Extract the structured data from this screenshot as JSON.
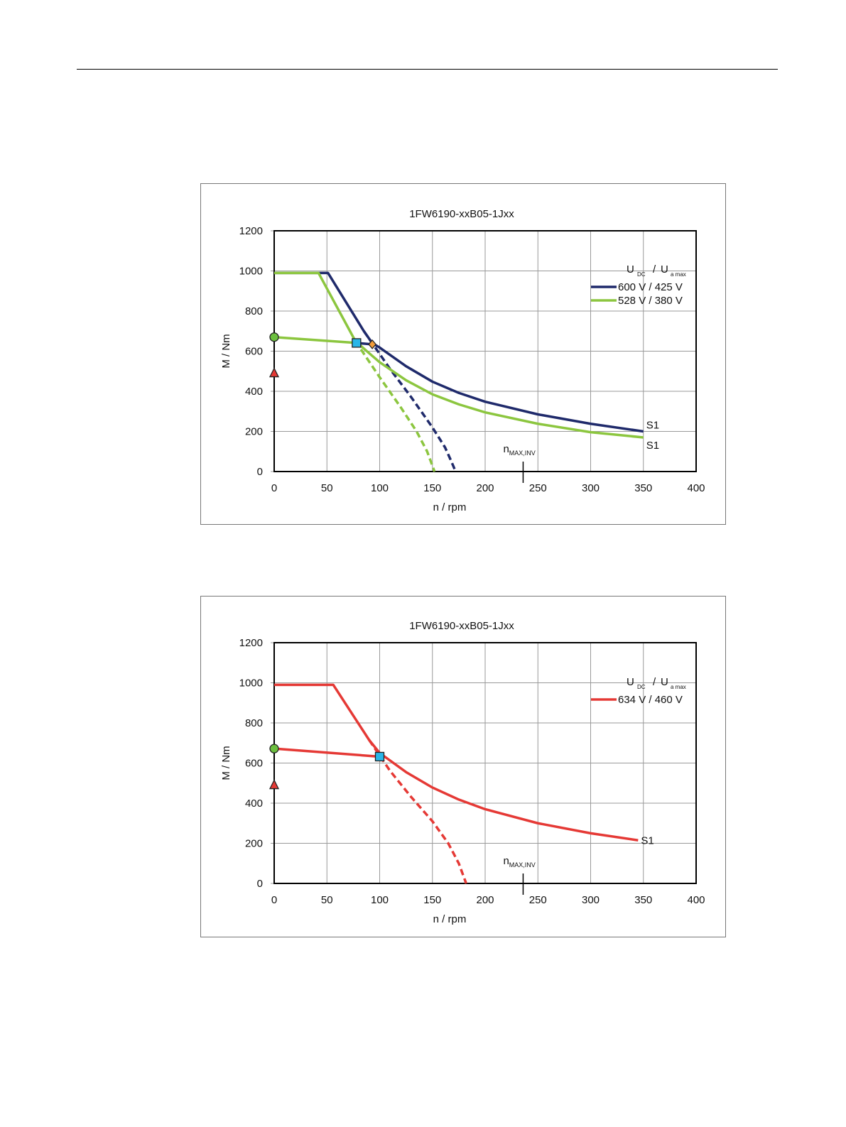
{
  "chart_data": [
    {
      "type": "line",
      "title": "1FW6190-xxB05-1Jxx",
      "xlabel": "n / rpm",
      "ylabel": "M / Nm",
      "xlim": [
        0,
        400
      ],
      "ylim": [
        0,
        1200
      ],
      "xticks": [
        0,
        50,
        100,
        150,
        200,
        250,
        300,
        350,
        400
      ],
      "yticks": [
        0,
        200,
        400,
        600,
        800,
        1000,
        1200
      ],
      "grid": true,
      "legend_position": "top-right",
      "legend_title": {
        "main1": "U",
        "sub1": "DC",
        "sep": "/",
        "main2": "U",
        "sub2": "a max"
      },
      "annotation": {
        "main": "n",
        "sub": "MAX,INV",
        "x": 236
      },
      "series": [
        {
          "name": "600 V / 425 V",
          "color": "#1f2a6b",
          "end_label": "S1",
          "solid": [
            [
              0,
              990
            ],
            [
              51,
              990
            ],
            [
              85,
              700
            ],
            [
              93,
              640
            ],
            [
              100,
              618
            ],
            [
              125,
              525
            ],
            [
              150,
              448
            ],
            [
              175,
              392
            ],
            [
              200,
              348
            ],
            [
              250,
              285
            ],
            [
              300,
              238
            ],
            [
              350,
              200
            ]
          ],
          "dashed": [
            [
              85,
              700
            ],
            [
              110,
              510
            ],
            [
              130,
              370
            ],
            [
              150,
              220
            ],
            [
              162,
              120
            ],
            [
              168,
              50
            ],
            [
              172,
              0
            ]
          ]
        },
        {
          "name": "528 V / 380 V",
          "color": "#8cc63f",
          "end_label": "S1",
          "solid": [
            [
              0,
              990
            ],
            [
              42,
              990
            ],
            [
              77,
              650
            ],
            [
              90,
              590
            ],
            [
              100,
              545
            ],
            [
              125,
              455
            ],
            [
              150,
              385
            ],
            [
              175,
              335
            ],
            [
              200,
              295
            ],
            [
              250,
              238
            ],
            [
              300,
              196
            ],
            [
              350,
              170
            ]
          ],
          "dashed": [
            [
              77,
              650
            ],
            [
              100,
              470
            ],
            [
              120,
              320
            ],
            [
              135,
              200
            ],
            [
              145,
              100
            ],
            [
              152,
              0
            ]
          ]
        },
        {
          "color": "#8cc63f",
          "solid": [
            [
              0,
              670
            ],
            [
              78,
              641
            ]
          ]
        },
        {
          "color": "#1f2a6b",
          "solid": [
            [
              78,
              641
            ],
            [
              93,
              634
            ]
          ]
        }
      ],
      "markers": [
        {
          "shape": "circle",
          "x": 0,
          "y": 670,
          "color": "#6cbf3f"
        },
        {
          "shape": "triangle",
          "x": 0,
          "y": 490,
          "color": "#e53935"
        },
        {
          "shape": "square",
          "x": 78,
          "y": 641,
          "color": "#29b6e8"
        },
        {
          "shape": "diamond",
          "x": 93,
          "y": 634,
          "color": "#f39c3b"
        }
      ]
    },
    {
      "type": "line",
      "title": "1FW6190-xxB05-1Jxx",
      "xlabel": "n / rpm",
      "ylabel": "M / Nm",
      "xlim": [
        0,
        400
      ],
      "ylim": [
        0,
        1200
      ],
      "xticks": [
        0,
        50,
        100,
        150,
        200,
        250,
        300,
        350,
        400
      ],
      "yticks": [
        0,
        200,
        400,
        600,
        800,
        1000,
        1200
      ],
      "grid": true,
      "legend_position": "top-right",
      "legend_title": {
        "main1": "U",
        "sub1": "DC",
        "sep": "/",
        "main2": "U",
        "sub2": "a max"
      },
      "annotation": {
        "main": "n",
        "sub": "MAX,INV",
        "x": 236
      },
      "series": [
        {
          "name": "634 V / 460 V",
          "color": "#e53935",
          "end_label": "S1",
          "solid": [
            [
              0,
              990
            ],
            [
              56,
              990
            ],
            [
              90,
              715
            ],
            [
              100,
              650
            ],
            [
              125,
              555
            ],
            [
              150,
              478
            ],
            [
              175,
              418
            ],
            [
              200,
              370
            ],
            [
              250,
              300
            ],
            [
              300,
              250
            ],
            [
              345,
              215
            ]
          ],
          "dashed": [
            [
              90,
              715
            ],
            [
              110,
              560
            ],
            [
              130,
              430
            ],
            [
              150,
              310
            ],
            [
              165,
              200
            ],
            [
              175,
              100
            ],
            [
              182,
              0
            ]
          ]
        },
        {
          "color": "#e53935",
          "solid": [
            [
              0,
              672
            ],
            [
              100,
              632
            ]
          ]
        }
      ],
      "markers": [
        {
          "shape": "circle",
          "x": 0,
          "y": 672,
          "color": "#6cbf3f"
        },
        {
          "shape": "triangle",
          "x": 0,
          "y": 490,
          "color": "#e53935"
        },
        {
          "shape": "square",
          "x": 100,
          "y": 632,
          "color": "#29b6e8"
        }
      ]
    }
  ]
}
